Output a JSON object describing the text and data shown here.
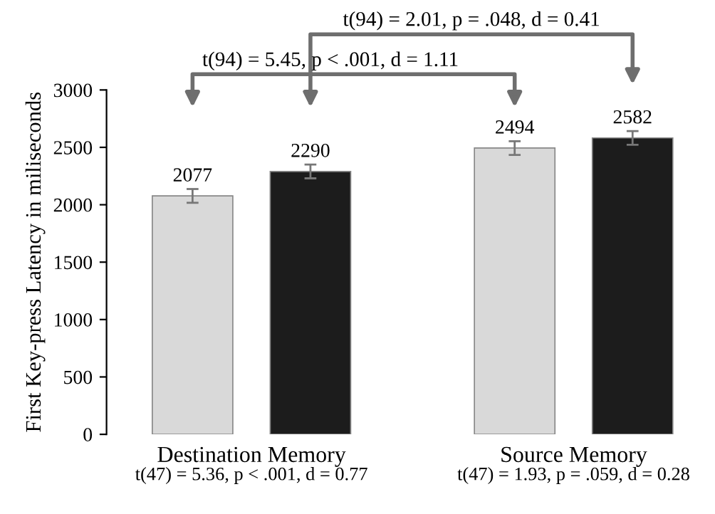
{
  "chart_data": {
    "type": "bar",
    "ylabel": "First Key-press Latency in miliseconds",
    "categories": [
      "Destination Memory",
      "Source Memory"
    ],
    "series": [
      {
        "color": "#d9d9d9",
        "values": [
          2077,
          2494
        ],
        "errors": [
          60,
          60
        ]
      },
      {
        "color": "#1c1c1c",
        "values": [
          2290,
          2582
        ],
        "errors": [
          60,
          60
        ]
      }
    ],
    "ylim": [
      0,
      3000
    ],
    "yticks": [
      0,
      500,
      1000,
      1500,
      2000,
      2500,
      3000
    ],
    "data_labels": true,
    "grid": false,
    "legend": false,
    "annotations": [
      "t(94) = 2.01, p = .048, d = 0.41",
      "t(94) = 5.45, p < .001, d = 1.11",
      "t(47) = 5.36, p < .001, d = 0.77",
      "t(47) = 1.93, p = .059, d = 0.28"
    ]
  }
}
